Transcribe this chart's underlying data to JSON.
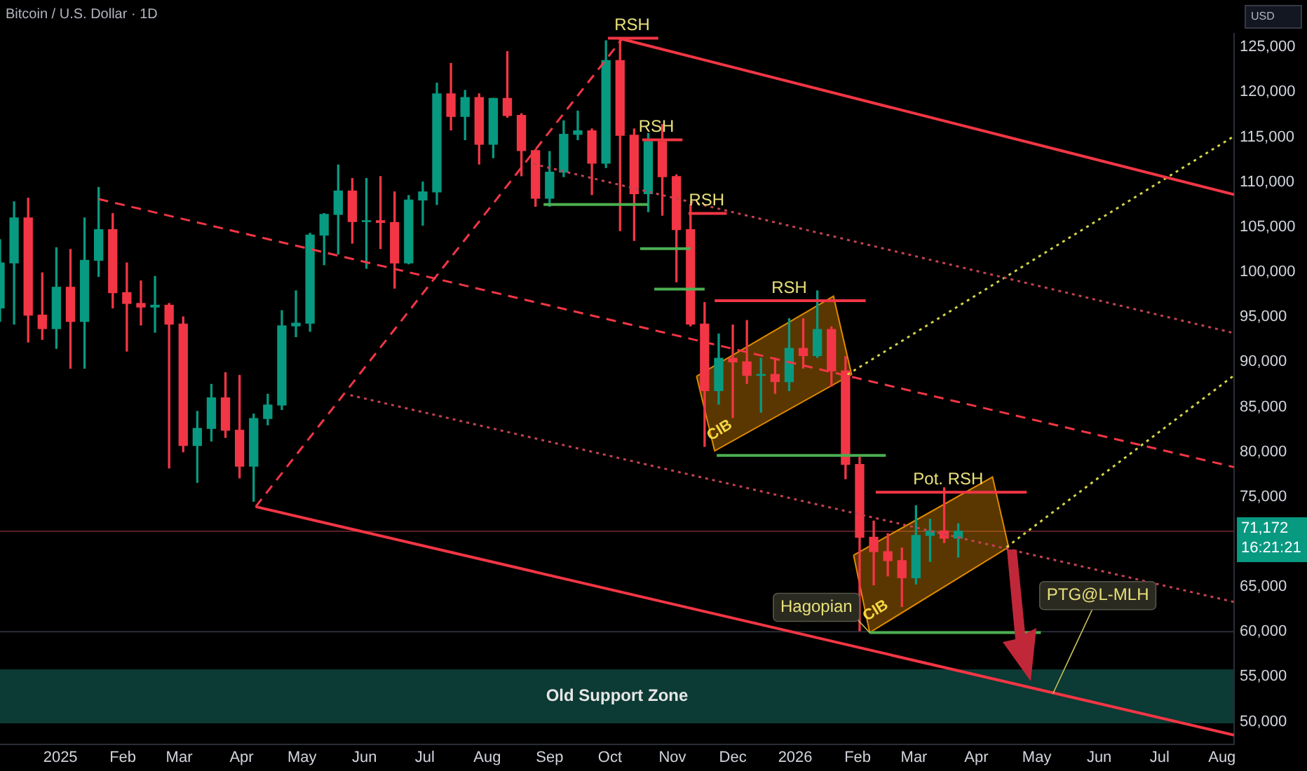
{
  "chart_data": {
    "type": "candlestick",
    "title": "Bitcoin / U.S. Dollar · 1D",
    "x": [
      "2024-12-02",
      "2024-12-09",
      "2024-12-16",
      "2024-12-23",
      "2024-12-30",
      "2025-01-06",
      "2025-01-13",
      "2025-01-20",
      "2025-01-27",
      "2025-02-03",
      "2025-02-10",
      "2025-02-17",
      "2025-02-24",
      "2025-03-03",
      "2025-03-10",
      "2025-03-17",
      "2025-03-24",
      "2025-03-31",
      "2025-04-07",
      "2025-04-14",
      "2025-04-21",
      "2025-04-28",
      "2025-05-05",
      "2025-05-12",
      "2025-05-19",
      "2025-05-26",
      "2025-06-02",
      "2025-06-09",
      "2025-06-16",
      "2025-06-23",
      "2025-06-30",
      "2025-07-07",
      "2025-07-14",
      "2025-07-21",
      "2025-07-28",
      "2025-08-04",
      "2025-08-11",
      "2025-08-18",
      "2025-08-25",
      "2025-09-01",
      "2025-09-08",
      "2025-09-15",
      "2025-09-22",
      "2025-09-29",
      "2025-10-06",
      "2025-10-13",
      "2025-10-20",
      "2025-10-27",
      "2025-11-03",
      "2025-11-10",
      "2025-11-17",
      "2025-11-24",
      "2025-12-01",
      "2025-12-08",
      "2025-12-15",
      "2025-12-22",
      "2025-12-29",
      "2026-01-05",
      "2026-01-12",
      "2026-01-19",
      "2026-01-26",
      "2026-02-02",
      "2026-02-09",
      "2026-02-16",
      "2026-02-23",
      "2026-03-02",
      "2026-03-09",
      "2026-03-16",
      "2026-03-23"
    ],
    "ohlc": [
      [
        96000,
        103600,
        94500,
        101000
      ],
      [
        101000,
        107800,
        94200,
        106000
      ],
      [
        106000,
        108200,
        92200,
        95200
      ],
      [
        95200,
        99900,
        92500,
        93700
      ],
      [
        93700,
        102700,
        91500,
        98300
      ],
      [
        98300,
        102500,
        89300,
        94500
      ],
      [
        94500,
        106000,
        89300,
        101300
      ],
      [
        101300,
        109400,
        99500,
        104700
      ],
      [
        104700,
        106500,
        96000,
        97700
      ],
      [
        97700,
        101000,
        91200,
        96500
      ],
      [
        96500,
        99000,
        94100,
        96100
      ],
      [
        96100,
        99500,
        93300,
        96300
      ],
      [
        96300,
        96500,
        78200,
        94200
      ],
      [
        94200,
        95000,
        80000,
        80700
      ],
      [
        80700,
        84500,
        76600,
        82600
      ],
      [
        82600,
        87500,
        81200,
        86000
      ],
      [
        86000,
        88800,
        81600,
        82400
      ],
      [
        82400,
        88500,
        77100,
        78400
      ],
      [
        78400,
        84200,
        74500,
        83700
      ],
      [
        83700,
        86400,
        83000,
        85200
      ],
      [
        85200,
        95700,
        84700,
        94000
      ],
      [
        94000,
        97900,
        92800,
        94300
      ],
      [
        94300,
        104300,
        93400,
        104100
      ],
      [
        104100,
        106500,
        100800,
        106400
      ],
      [
        106400,
        111900,
        102000,
        109000
      ],
      [
        109000,
        110400,
        103200,
        105600
      ],
      [
        105600,
        110400,
        100400,
        105700
      ],
      [
        105700,
        110600,
        102600,
        105500
      ],
      [
        105500,
        108900,
        98200,
        101000
      ],
      [
        101000,
        108500,
        100900,
        108000
      ],
      [
        108000,
        110000,
        105200,
        108900
      ],
      [
        108900,
        121000,
        107500,
        119800
      ],
      [
        119800,
        123200,
        115800,
        117300
      ],
      [
        117300,
        120200,
        114700,
        119400
      ],
      [
        119400,
        119800,
        112000,
        114200
      ],
      [
        114200,
        119300,
        112700,
        119300
      ],
      [
        119300,
        124500,
        117200,
        117400
      ],
      [
        117400,
        117600,
        110700,
        113500
      ],
      [
        113500,
        113600,
        107300,
        108200
      ],
      [
        108200,
        113400,
        107300,
        111100
      ],
      [
        111100,
        116800,
        110600,
        115300
      ],
      [
        115300,
        117900,
        114700,
        115700
      ],
      [
        115700,
        115900,
        108600,
        112100
      ],
      [
        112100,
        125700,
        111600,
        123500
      ],
      [
        123500,
        126000,
        104600,
        115200
      ],
      [
        115200,
        115900,
        103500,
        108700
      ],
      [
        108700,
        115400,
        106700,
        114500
      ],
      [
        114500,
        116400,
        106300,
        110600
      ],
      [
        110600,
        110800,
        98900,
        104700
      ],
      [
        104700,
        107500,
        94000,
        94200
      ],
      [
        94200,
        96600,
        80600,
        86800
      ],
      [
        86800,
        93100,
        85300,
        90400
      ],
      [
        90400,
        94100,
        83800,
        90000
      ],
      [
        90000,
        94600,
        87600,
        88500
      ],
      [
        88500,
        90400,
        84400,
        88600
      ],
      [
        88600,
        90400,
        86500,
        87800
      ],
      [
        87800,
        94800,
        86800,
        91500
      ],
      [
        91500,
        94800,
        89300,
        90700
      ],
      [
        90700,
        97900,
        90500,
        93600
      ],
      [
        93600,
        93900,
        87300,
        89000
      ],
      [
        89000,
        90600,
        77000,
        78600
      ],
      [
        78600,
        79400,
        60100,
        70500
      ],
      [
        70500,
        72300,
        65200,
        68900
      ],
      [
        68900,
        70900,
        66200,
        67900
      ],
      [
        67900,
        69300,
        62800,
        66000
      ],
      [
        66000,
        74000,
        65300,
        70700
      ],
      [
        70700,
        72500,
        67800,
        71200
      ],
      [
        71200,
        76000,
        69900,
        70400
      ],
      [
        70400,
        72000,
        68300,
        71172
      ]
    ],
    "series": [
      {
        "type": "line",
        "color": "#f23645",
        "line_style": "dashed",
        "x": [
          "2025-01-20",
          "2026-08-07"
        ],
        "values": [
          108100,
          78300
        ]
      },
      {
        "type": "line",
        "color": "#f23645",
        "line_style": "dashed",
        "x": [
          "2025-04-08",
          "2025-10-07"
        ],
        "values": [
          73900,
          125900
        ]
      },
      {
        "type": "line",
        "color": "#f23645",
        "line_style": "solid",
        "x": [
          "2025-10-07",
          "2026-08-07"
        ],
        "values": [
          125900,
          108600
        ]
      },
      {
        "type": "line",
        "color": "#f23645",
        "line_style": "solid",
        "x": [
          "2025-04-08",
          "2026-08-07"
        ],
        "values": [
          73900,
          48500
        ]
      },
      {
        "type": "line",
        "color": "#c2424f",
        "line_style": "dotted",
        "x": [
          "2025-08-24",
          "2026-08-07"
        ],
        "values": [
          112000,
          93200
        ]
      },
      {
        "type": "line",
        "color": "#c2424f",
        "line_style": "dotted",
        "x": [
          "2025-05-25",
          "2026-08-07"
        ],
        "values": [
          86300,
          63300
        ]
      },
      {
        "type": "line",
        "color": "#d4d447",
        "line_style": "dotted",
        "x": [
          "2026-01-27",
          "2026-08-07"
        ],
        "values": [
          88600,
          115100
        ]
      },
      {
        "type": "line",
        "color": "#d4d447",
        "line_style": "dotted",
        "x": [
          "2026-04-16",
          "2026-08-07"
        ],
        "values": [
          69400,
          88500
        ]
      },
      {
        "type": "area",
        "color": "#e08a00",
        "x": [
          "2025-11-13",
          "2026-01-20",
          "2026-01-29",
          "2025-11-22",
          "2025-11-13"
        ],
        "values": [
          88400,
          97300,
          88600,
          80100,
          88400
        ]
      },
      {
        "type": "area",
        "color": "#e08a00",
        "x": [
          "2026-01-30",
          "2026-04-09",
          "2026-04-17",
          "2026-02-07",
          "2026-01-30"
        ],
        "values": [
          68500,
          77200,
          69400,
          59900,
          68500
        ]
      },
      {
        "type": "line",
        "color": "#f23645",
        "line_style": "solid",
        "x": [
          "2025-09-30",
          "2025-10-25"
        ],
        "values": [
          126000,
          126000
        ]
      },
      {
        "type": "line",
        "color": "#f23645",
        "line_style": "solid",
        "x": [
          "2025-10-17",
          "2025-11-06"
        ],
        "values": [
          114700,
          114700
        ]
      },
      {
        "type": "line",
        "color": "#f23645",
        "line_style": "solid",
        "x": [
          "2025-11-09",
          "2025-11-28"
        ],
        "values": [
          106500,
          106500
        ]
      },
      {
        "type": "line",
        "color": "#f23645",
        "line_style": "solid",
        "x": [
          "2025-11-22",
          "2026-02-05"
        ],
        "values": [
          96800,
          96800
        ]
      },
      {
        "type": "line",
        "color": "#f23645",
        "line_style": "solid",
        "x": [
          "2026-02-10",
          "2026-04-26"
        ],
        "values": [
          75500,
          75500
        ]
      },
      {
        "type": "line",
        "color": "#4caf50",
        "line_style": "solid",
        "x": [
          "2025-08-29",
          "2025-10-20"
        ],
        "values": [
          107500,
          107500
        ]
      },
      {
        "type": "line",
        "color": "#4caf50",
        "line_style": "solid",
        "x": [
          "2025-10-16",
          "2025-11-10"
        ],
        "values": [
          102600,
          102600
        ]
      },
      {
        "type": "line",
        "color": "#4caf50",
        "line_style": "solid",
        "x": [
          "2025-10-23",
          "2025-11-17"
        ],
        "values": [
          98100,
          98100
        ]
      },
      {
        "type": "line",
        "color": "#4caf50",
        "line_style": "solid",
        "x": [
          "2025-11-23",
          "2026-02-15"
        ],
        "values": [
          79600,
          79600
        ]
      },
      {
        "type": "line",
        "color": "#4caf50",
        "line_style": "solid",
        "x": [
          "2026-02-07",
          "2026-05-03"
        ],
        "values": [
          59900,
          59900
        ]
      }
    ],
    "xlim": [
      "2024-12-02",
      "2026-08-07"
    ],
    "xticks": [
      {
        "value": "2025-01-01",
        "label": "2025"
      },
      {
        "value": "2025-02-01",
        "label": "Feb"
      },
      {
        "value": "2025-03-01",
        "label": "Mar"
      },
      {
        "value": "2025-04-01",
        "label": "Apr"
      },
      {
        "value": "2025-05-01",
        "label": "May"
      },
      {
        "value": "2025-06-01",
        "label": "Jun"
      },
      {
        "value": "2025-07-01",
        "label": "Jul"
      },
      {
        "value": "2025-08-01",
        "label": "Aug"
      },
      {
        "value": "2025-09-01",
        "label": "Sep"
      },
      {
        "value": "2025-10-01",
        "label": "Oct"
      },
      {
        "value": "2025-11-01",
        "label": "Nov"
      },
      {
        "value": "2025-12-01",
        "label": "Dec"
      },
      {
        "value": "2026-01-01",
        "label": "2026"
      },
      {
        "value": "2026-02-01",
        "label": "Feb"
      },
      {
        "value": "2026-03-01",
        "label": "Mar"
      },
      {
        "value": "2026-04-01",
        "label": "Apr"
      },
      {
        "value": "2026-05-01",
        "label": "May"
      },
      {
        "value": "2026-06-01",
        "label": "Jun"
      },
      {
        "value": "2026-07-01",
        "label": "Jul"
      },
      {
        "value": "2026-08-01",
        "label": "Aug"
      }
    ],
    "ylim": [
      47500,
      126500
    ],
    "yticks": [
      {
        "value": 50000,
        "label": "50,000"
      },
      {
        "value": 55000,
        "label": "55,000"
      },
      {
        "value": 60000,
        "label": "60,000"
      },
      {
        "value": 65000,
        "label": "65,000"
      },
      {
        "value": 75000,
        "label": "75,000"
      },
      {
        "value": 80000,
        "label": "80,000"
      },
      {
        "value": 85000,
        "label": "85,000"
      },
      {
        "value": 90000,
        "label": "90,000"
      },
      {
        "value": 95000,
        "label": "95,000"
      },
      {
        "value": 100000,
        "label": "100,000"
      },
      {
        "value": 105000,
        "label": "105,000"
      },
      {
        "value": 110000,
        "label": "110,000"
      },
      {
        "value": 115000,
        "label": "115,000"
      },
      {
        "value": 120000,
        "label": "120,000"
      },
      {
        "value": 125000,
        "label": "125,000"
      }
    ],
    "grid": false,
    "legend": false,
    "ref_lines": [
      {
        "axis": "y",
        "value": 71172,
        "label": "71,172",
        "color": "#5a1e26"
      },
      {
        "axis": "y",
        "value": 60000,
        "color": "#2a2e39"
      }
    ],
    "bands": [
      {
        "axis": "y",
        "from": 49800,
        "to": 55800,
        "label": "Old Support Zone",
        "color": "#0c3a34"
      }
    ],
    "annotations": [
      {
        "text": "RSH",
        "x": "2025-10-12",
        "y": 126000
      },
      {
        "text": "RSH",
        "x": "2025-10-24",
        "y": 114700
      },
      {
        "text": "RSH",
        "x": "2025-11-18",
        "y": 106500
      },
      {
        "text": "RSH",
        "x": "2025-12-29",
        "y": 96800
      },
      {
        "text": "Pot. RSH",
        "x": "2026-03-18",
        "y": 75500
      },
      {
        "text": "Hagopian",
        "x": "2026-02-07",
        "y": 59900
      },
      {
        "text": "PTG@L-MLH",
        "x": "2026-05-09",
        "y": 53100
      },
      "USD",
      "16:21:21",
      "CIB",
      "CIB"
    ]
  }
}
